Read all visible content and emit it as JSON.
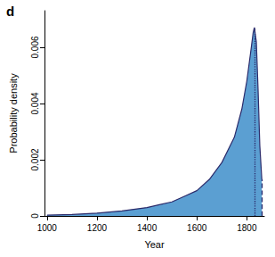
{
  "chart_data": {
    "type": "area",
    "title": "d",
    "x_label": "Year",
    "y_label": "Probability density",
    "x": [
      1000,
      1100,
      1200,
      1300,
      1400,
      1450,
      1500,
      1550,
      1600,
      1650,
      1700,
      1750,
      1780,
      1800,
      1815,
      1825,
      1830,
      1838,
      1845,
      1852,
      1860
    ],
    "values": [
      3e-05,
      5e-05,
      0.0001,
      0.00018,
      0.0003,
      0.0004,
      0.0005,
      0.0007,
      0.0009,
      0.0013,
      0.0019,
      0.0028,
      0.0038,
      0.0048,
      0.0058,
      0.0065,
      0.0067,
      0.0062,
      0.0045,
      0.0025,
      0.0013
    ],
    "color": "#5b9fd2",
    "xlim": [
      990,
      1870
    ],
    "xticks": [
      1000,
      1200,
      1400,
      1600,
      1800
    ],
    "ylim": [
      0,
      0.0073
    ],
    "yticks": [
      0,
      0.002,
      0.004,
      0.006
    ],
    "grid": false,
    "vlines": [
      {
        "x": 1830,
        "line_style": "dotted"
      },
      {
        "x": 1860,
        "line_style": "dashed"
      }
    ]
  }
}
